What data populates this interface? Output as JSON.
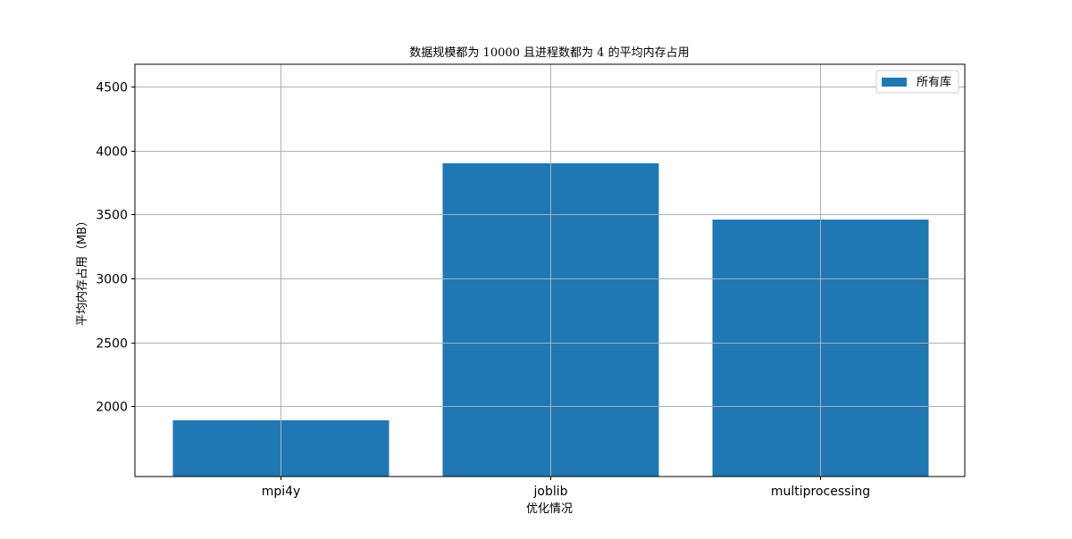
{
  "chart_data": {
    "type": "bar",
    "title": "数据规模都为 10000 且进程数都为 4 的平均内存占用",
    "xlabel": "优化情况",
    "ylabel": "平均内存占用（MB）",
    "categories": [
      "mpi4y",
      "joblib",
      "multiprocessing"
    ],
    "series": [
      {
        "name": "所有库",
        "values": [
          1890,
          3900,
          3460
        ]
      }
    ],
    "ylim": [
      1450,
      4675
    ],
    "yticks": [
      2000,
      2500,
      3000,
      3500,
      4000,
      4500
    ],
    "grid": true,
    "legend_position": "top-right",
    "colors": {
      "bar": "#1f77b4",
      "grid": "#b0b0b0",
      "axis": "#000000"
    }
  }
}
